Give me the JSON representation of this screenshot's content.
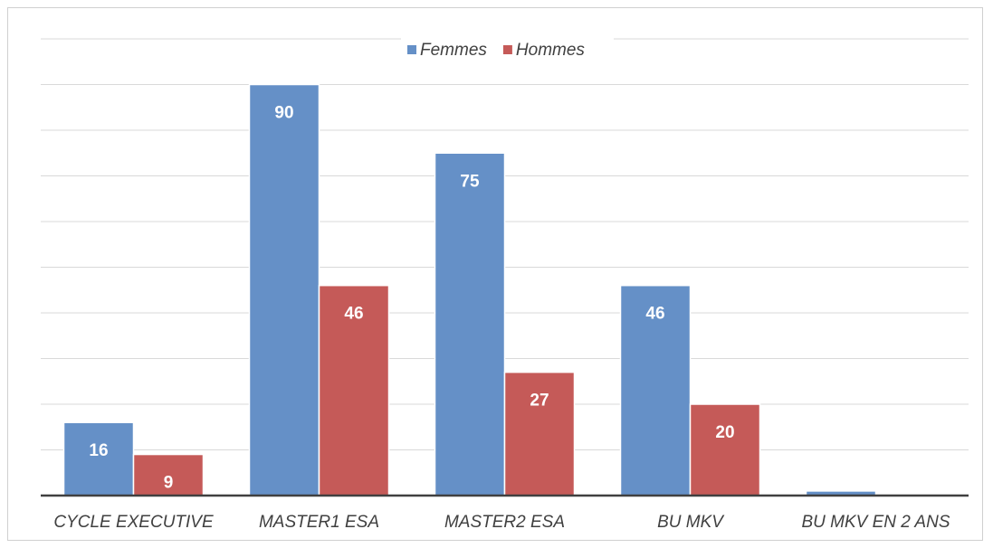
{
  "chart_data": {
    "type": "bar",
    "categories": [
      "CYCLE EXECUTIVE",
      "MASTER1 ESA",
      "MASTER2 ESA",
      "BU MKV",
      "BU MKV EN 2 ANS"
    ],
    "series": [
      {
        "name": "Femmes",
        "color": "#6590c7",
        "values": [
          16,
          90,
          75,
          46,
          1
        ]
      },
      {
        "name": "Hommes",
        "color": "#c55a58",
        "values": [
          9,
          46,
          27,
          20,
          null
        ]
      }
    ],
    "ylim": [
      0,
      100
    ],
    "yticks": [
      0,
      10,
      20,
      30,
      40,
      50,
      60,
      70,
      80,
      90,
      100
    ],
    "grid": true,
    "legend": "top"
  }
}
